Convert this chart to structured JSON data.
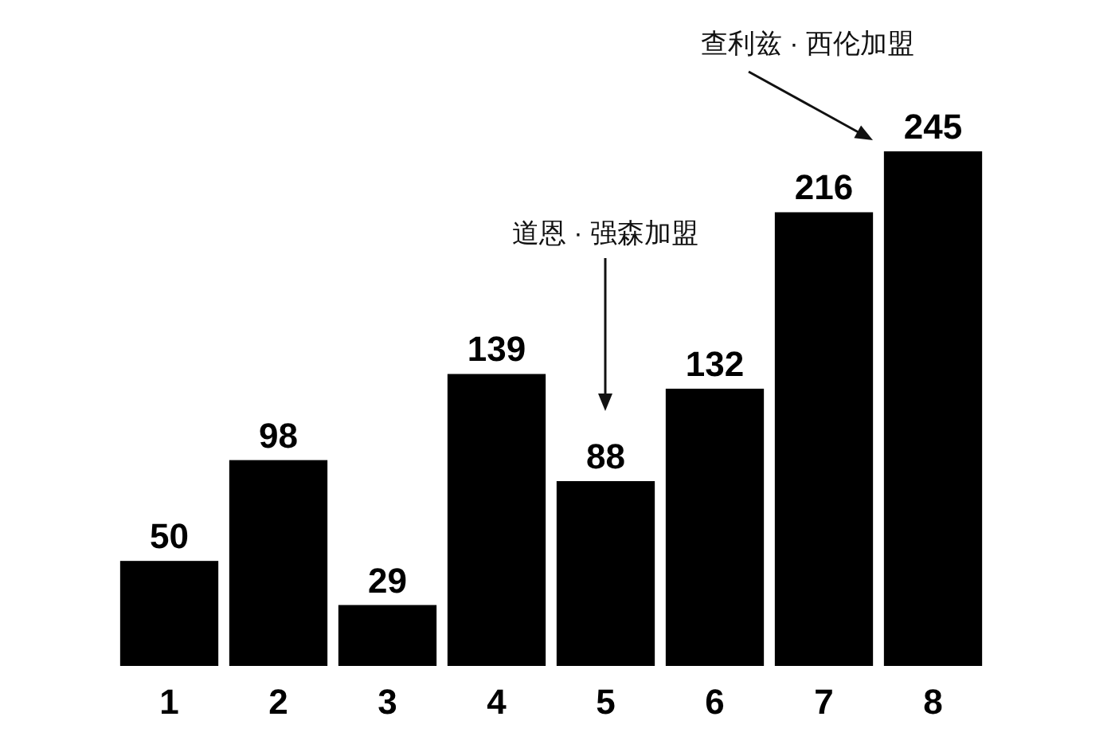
{
  "chart_data": {
    "type": "bar",
    "categories": [
      "1",
      "2",
      "3",
      "4",
      "5",
      "6",
      "7",
      "8"
    ],
    "values": [
      50,
      98,
      29,
      139,
      88,
      132,
      216,
      245
    ],
    "color": "#000000",
    "data_labels": true,
    "annotations": [
      "道恩 · 强森加盟",
      "查利兹 · 西伦加盟"
    ]
  }
}
